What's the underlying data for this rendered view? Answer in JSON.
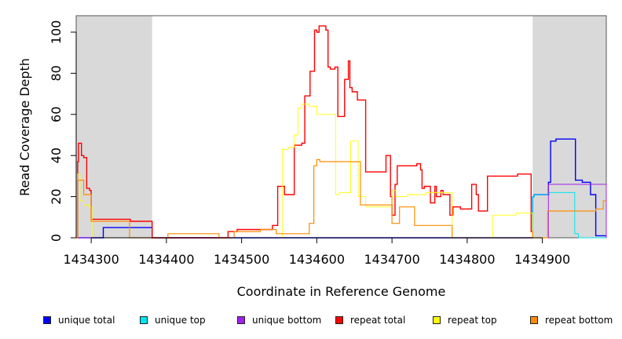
{
  "chart_data": {
    "type": "line",
    "xlabel": "Coordinate in Reference Genome",
    "ylabel": "Read Coverage Depth",
    "xlim": [
      1434280,
      1434985
    ],
    "ylim": [
      0,
      108
    ],
    "x_ticks": [
      1434300,
      1434400,
      1434500,
      1434600,
      1434700,
      1434800,
      1434900
    ],
    "y_ticks": [
      0,
      20,
      40,
      60,
      80,
      100
    ],
    "shaded_regions": [
      [
        1434280,
        1434381
      ],
      [
        1434887,
        1434985
      ]
    ],
    "shaded_color": "#d9d9d9",
    "grid": false,
    "step": true,
    "series": [
      {
        "name": "unique total",
        "color": "#0000ff",
        "x": [
          1434280,
          1434316,
          1434381,
          1434887,
          1434889,
          1434908,
          1434911,
          1434918,
          1434944,
          1434953,
          1434964,
          1434971,
          1434985
        ],
        "y": [
          0,
          5,
          0,
          20,
          21,
          27,
          47,
          48,
          28,
          27,
          21,
          1,
          1
        ]
      },
      {
        "name": "unique top",
        "color": "#00e5ee",
        "x": [
          1434280,
          1434887,
          1434889,
          1434909,
          1434936,
          1434943,
          1434948,
          1434985
        ],
        "y": [
          0,
          20,
          21,
          22,
          22,
          2,
          0,
          0
        ]
      },
      {
        "name": "unique bottom",
        "color": "#a020f0",
        "x": [
          1434280,
          1434905,
          1434908,
          1434934,
          1434966,
          1434985
        ],
        "y": [
          0,
          0,
          26,
          26,
          26,
          0
        ]
      },
      {
        "name": "repeat total",
        "color": "#ff0000",
        "x": [
          1434280,
          1434282,
          1434283,
          1434287,
          1434290,
          1434294,
          1434298,
          1434300,
          1434344,
          1434352,
          1434381,
          1434482,
          1434494,
          1434532,
          1434541,
          1434544,
          1434548,
          1434557,
          1434560,
          1434570,
          1434574,
          1434580,
          1434584,
          1434590,
          1434591,
          1434597,
          1434600,
          1434603,
          1434612,
          1434615,
          1434618,
          1434624,
          1434628,
          1434632,
          1434637,
          1434640,
          1434642,
          1434644,
          1434647,
          1434654,
          1434665,
          1434672,
          1434692,
          1434695,
          1434698,
          1434700,
          1434704,
          1434707,
          1434722,
          1434733,
          1434736,
          1434738,
          1434740,
          1434743,
          1434747,
          1434751,
          1434757,
          1434759,
          1434765,
          1434768,
          1434777,
          1434781,
          1434787,
          1434791,
          1434800,
          1434806,
          1434812,
          1434815,
          1434818,
          1434827,
          1434832,
          1434845,
          1434854,
          1434867,
          1434873,
          1434879,
          1434885,
          1434887
        ],
        "y": [
          0,
          37,
          46,
          40,
          39,
          24,
          23,
          9,
          9,
          8,
          0,
          3,
          4,
          4,
          6,
          6,
          25,
          21,
          21,
          45,
          45,
          46,
          69,
          69,
          81,
          101,
          100,
          103,
          101,
          83,
          82,
          83,
          59,
          59,
          77,
          77,
          86,
          73,
          71,
          67,
          32,
          32,
          40,
          40,
          20,
          11,
          26,
          35,
          35,
          36,
          36,
          33,
          24,
          25,
          25,
          17,
          25,
          20,
          23,
          21,
          11,
          15,
          15,
          14,
          14,
          26,
          21,
          13,
          13,
          30,
          30,
          30,
          30,
          31,
          31,
          31,
          3,
          0
        ]
      },
      {
        "name": "repeat top",
        "color": "#ffff00",
        "x": [
          1434280,
          1434282,
          1434285,
          1434290,
          1434297,
          1434301,
          1434381,
          1434532,
          1434554,
          1434562,
          1434570,
          1434575,
          1434580,
          1434585,
          1434590,
          1434600,
          1434625,
          1434630,
          1434645,
          1434650,
          1434655,
          1434665,
          1434680,
          1434695,
          1434700,
          1434705,
          1434720,
          1434745,
          1434762,
          1434780,
          1434818,
          1434834,
          1434865,
          1434887
        ],
        "y": [
          0,
          31,
          18,
          16,
          15,
          0,
          0,
          0,
          43,
          44,
          50,
          63,
          65,
          65,
          64,
          60,
          21,
          22,
          47,
          47,
          20,
          15,
          15,
          15,
          23,
          20,
          21,
          22,
          22,
          0,
          0,
          11,
          12,
          0
        ]
      },
      {
        "name": "repeat bottom",
        "color": "#ff8c00",
        "x": [
          1434280,
          1434282,
          1434290,
          1434300,
          1434351,
          1434381,
          1434381,
          1434402,
          1434470,
          1434490,
          1434525,
          1434544,
          1434546,
          1434570,
          1434590,
          1434596,
          1434600,
          1434604,
          1434645,
          1434658,
          1434700,
          1434710,
          1434730,
          1434752,
          1434780,
          1434887,
          1434907,
          1434971,
          1434981,
          1434985
        ],
        "y": [
          0,
          28,
          21,
          8,
          0,
          0,
          0,
          2,
          0,
          3,
          4,
          4,
          2,
          2,
          7,
          35,
          38,
          37,
          37,
          16,
          7,
          15,
          6,
          6,
          0,
          0,
          13,
          14,
          18,
          18
        ]
      }
    ]
  },
  "legend": {
    "items": [
      {
        "label": "unique total",
        "color": "#0000ff"
      },
      {
        "label": "unique top",
        "color": "#00e5ee"
      },
      {
        "label": "unique bottom",
        "color": "#a020f0"
      },
      {
        "label": "repeat total",
        "color": "#ff0000"
      },
      {
        "label": "repeat top",
        "color": "#ffff00"
      },
      {
        "label": "repeat bottom",
        "color": "#ff8c00"
      }
    ]
  }
}
